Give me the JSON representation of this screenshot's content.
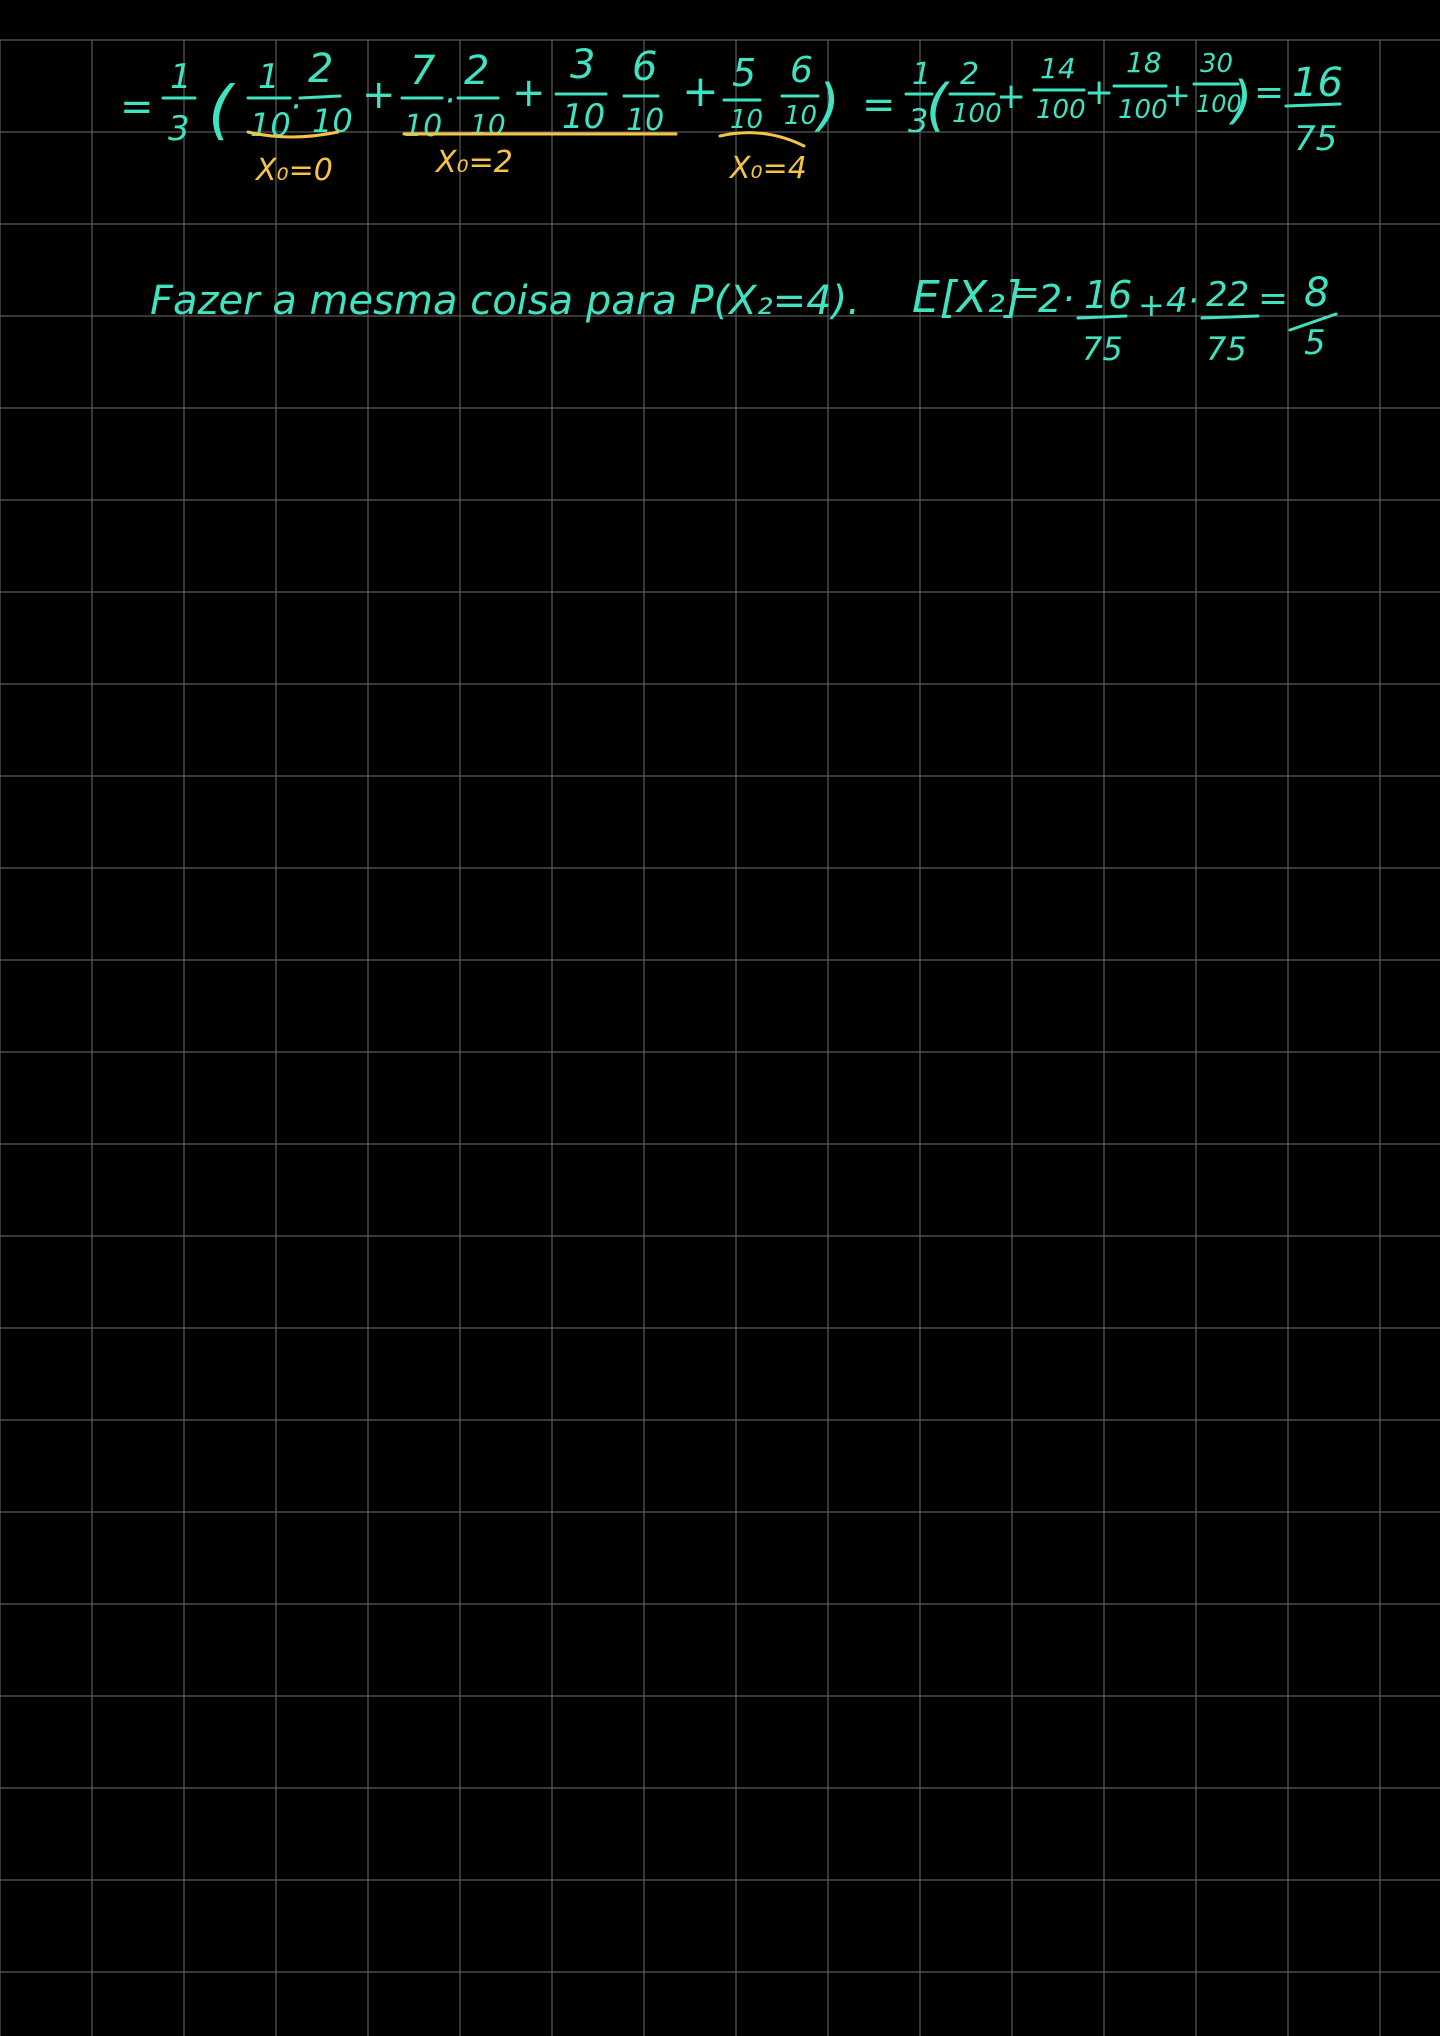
{
  "colors": {
    "background": "#000000",
    "grid": "#6e6e6e",
    "ink_primary": "#3fe3c2",
    "ink_highlight": "#f5c445"
  },
  "line1": {
    "eq_sign": "=",
    "outer_num": "1",
    "outer_den": "3",
    "open_paren": "(",
    "terms": [
      {
        "a_num": "1",
        "a_den": "10",
        "b_num": "2",
        "b_den": "10",
        "op": "·"
      },
      {
        "a_num": "7",
        "a_den": "10",
        "b_num": "2",
        "b_den": "10",
        "op": "·"
      },
      {
        "a_num": "3",
        "a_den": "10",
        "b_num": "6",
        "b_den": "10",
        "op": ""
      },
      {
        "a_num": "5",
        "a_den": "10",
        "b_num": "6",
        "b_den": "10",
        "op": ""
      }
    ],
    "plus": "+",
    "close_paren": ")",
    "notes": [
      "X₀=0",
      "X₀=2",
      "X₀=4"
    ],
    "rhs": {
      "eq_sign": "=",
      "outer_num": "1",
      "outer_den": "3",
      "fractions": [
        {
          "num": "2",
          "den": "100"
        },
        {
          "num": "14",
          "den": "100"
        },
        {
          "num": "18",
          "den": "100"
        },
        {
          "num": "30",
          "den": "100"
        }
      ],
      "eq_sign2": "=",
      "result_num": "16",
      "result_den": "75"
    }
  },
  "line2": {
    "text": "Fazer a mesma coisa para P(X₂=4).",
    "expectation": {
      "lhs": "E[X₂]",
      "eq_sign": "=",
      "coef1": "2·",
      "f1_num": "16",
      "f1_den": "75",
      "plus": "+",
      "coef2": "4·",
      "f2_num": "22",
      "f2_den": "75",
      "eq_sign2": "=",
      "result_num": "8",
      "result_den": "5"
    }
  }
}
